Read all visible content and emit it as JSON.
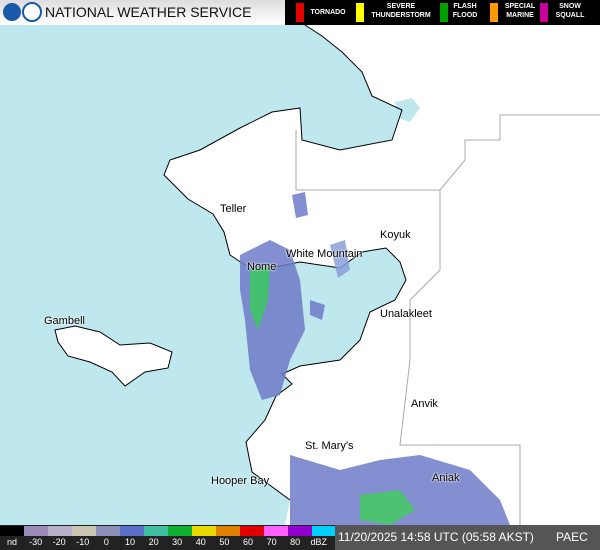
{
  "header": {
    "title": "NATIONAL WEATHER SERVICE",
    "warnings": [
      "TORNADO",
      "SEVERE THUNDERSTORM",
      "FLASH FLOOD",
      "SPECIAL MARINE",
      "SNOW SQUALL"
    ]
  },
  "places": [
    "Teller",
    "Koyuk",
    "White Mountain",
    "Nome",
    "Unalakleet",
    "Gambell",
    "Anvik",
    "St. Mary's",
    "Hooper Bay",
    "Aniak"
  ],
  "scale": {
    "labels": [
      "nd",
      "-30",
      "-20",
      "-10",
      "0",
      "10",
      "20",
      "30",
      "40",
      "50",
      "60",
      "70",
      "80",
      "dBZ"
    ]
  },
  "footer": {
    "timestamp": "11/20/2025 14:58 UTC (05:58 AKST)",
    "station": "PAEC"
  }
}
